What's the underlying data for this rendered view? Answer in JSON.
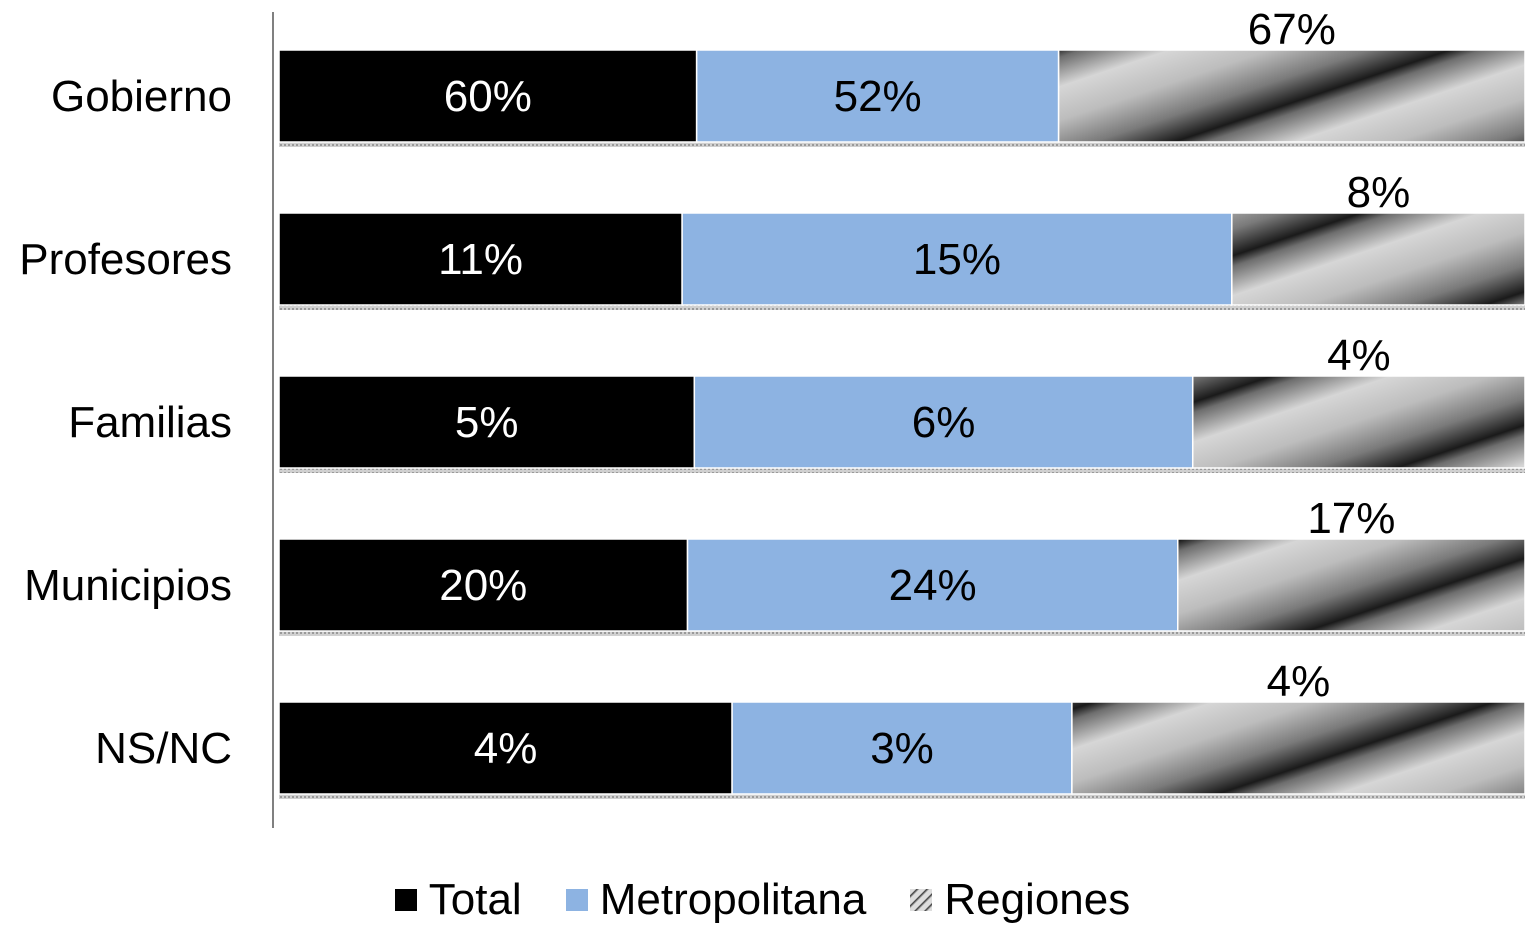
{
  "chart_data": {
    "type": "bar",
    "orientation": "horizontal",
    "stacked": "percent",
    "categories": [
      "Gobierno",
      "Profesores",
      "Familias",
      "Municipios",
      "NS/NC"
    ],
    "series": [
      {
        "name": "Total",
        "values": [
          60,
          11,
          5,
          20,
          4
        ],
        "labels": [
          "60%",
          "11%",
          "5%",
          "20%",
          "4%"
        ],
        "color": "#000000"
      },
      {
        "name": "Metropolitana",
        "values": [
          52,
          15,
          6,
          24,
          3
        ],
        "labels": [
          "52%",
          "15%",
          "6%",
          "24%",
          "3%"
        ],
        "color": "#8db3e2"
      },
      {
        "name": "Regiones",
        "values": [
          67,
          8,
          4,
          17,
          4
        ],
        "labels": [
          "67%",
          "8%",
          "4%",
          "17%",
          "4%"
        ],
        "color": "gradient-stripe"
      }
    ],
    "legend_position": "bottom",
    "grid": false
  }
}
